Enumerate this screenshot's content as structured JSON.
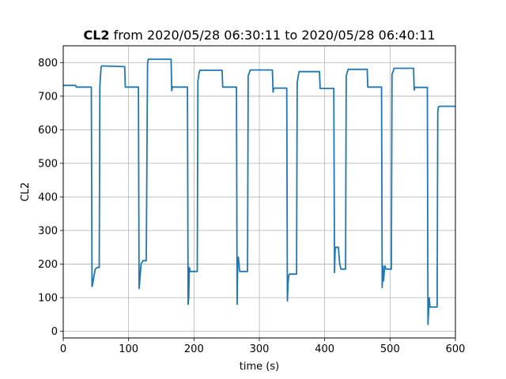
{
  "chart_data": {
    "type": "line",
    "title_bold": "CL2",
    "title_rest": " from 2020/05/28 06:30:11 to 2020/05/28 06:40:11",
    "xlabel": "time (s)",
    "ylabel": "CL2",
    "xlim": [
      0,
      600
    ],
    "ylim": [
      -20,
      850
    ],
    "xticks": [
      0,
      100,
      200,
      300,
      400,
      500,
      600
    ],
    "yticks": [
      0,
      100,
      200,
      300,
      400,
      500,
      600,
      700,
      800
    ],
    "grid": true,
    "line_color": "#1f77b4",
    "series": [
      {
        "x": [
          0,
          19,
          20,
          43,
          44,
          45,
          47,
          49,
          52,
          55,
          56,
          58,
          59,
          94,
          95,
          115,
          116,
          117,
          119,
          122,
          127,
          129,
          130,
          131,
          165,
          166,
          167,
          169,
          190,
          191,
          192,
          193,
          194,
          195,
          197,
          205,
          206,
          208,
          209,
          243,
          244,
          265,
          266,
          267,
          268,
          270,
          272,
          274,
          282,
          283,
          285,
          286,
          320,
          321,
          322,
          324,
          342,
          343,
          344,
          345,
          346,
          348,
          357,
          358,
          360,
          361,
          392,
          393,
          414,
          415,
          416,
          417,
          421,
          423,
          425,
          429,
          432,
          433,
          435,
          436,
          465,
          466,
          487,
          488,
          489,
          490,
          492,
          494,
          496,
          500,
          502,
          503,
          505,
          506,
          536,
          537,
          538,
          540,
          557,
          558,
          559,
          560,
          561,
          562,
          563,
          572,
          573,
          574,
          576,
          578,
          580,
          600
        ],
        "y": [
          732,
          732,
          727,
          727,
          133,
          140,
          165,
          185,
          190,
          190,
          730,
          787,
          790,
          788,
          727,
          727,
          127,
          148,
          200,
          210,
          210,
          795,
          810,
          810,
          810,
          716,
          728,
          727,
          727,
          80,
          100,
          190,
          178,
          178,
          178,
          178,
          745,
          770,
          777,
          777,
          727,
          727,
          80,
          210,
          220,
          178,
          178,
          178,
          178,
          760,
          772,
          778,
          778,
          712,
          724,
          724,
          724,
          90,
          145,
          165,
          170,
          170,
          170,
          740,
          765,
          773,
          773,
          723,
          723,
          175,
          245,
          250,
          250,
          200,
          185,
          185,
          185,
          760,
          775,
          780,
          780,
          727,
          727,
          130,
          195,
          150,
          195,
          185,
          185,
          185,
          185,
          765,
          775,
          783,
          783,
          718,
          726,
          726,
          726,
          20,
          60,
          100,
          72,
          72,
          72,
          72,
          650,
          668,
          670,
          670,
          670,
          670
        ]
      }
    ]
  }
}
